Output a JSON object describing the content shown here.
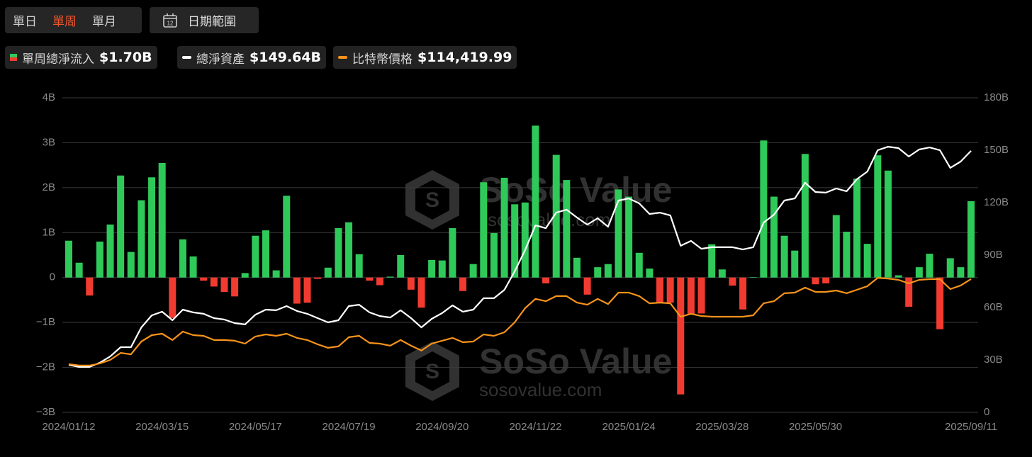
{
  "controls": {
    "periods": [
      "單日",
      "單周",
      "單月"
    ],
    "active": 1,
    "active_color": "#f2552c",
    "date_range": "日期範圍"
  },
  "chart_data": {
    "type": "bar",
    "grid": true,
    "watermark": {
      "name": "SoSo Value",
      "url": "sosovalue.com"
    },
    "categories": [
      "2024/01/12",
      null,
      null,
      null,
      null,
      null,
      null,
      null,
      null,
      "2024/03/15",
      null,
      null,
      null,
      null,
      null,
      null,
      null,
      null,
      "2024/05/17",
      null,
      null,
      null,
      null,
      null,
      null,
      null,
      null,
      "2024/07/19",
      null,
      null,
      null,
      null,
      null,
      null,
      null,
      null,
      "2024/09/20",
      null,
      null,
      null,
      null,
      null,
      null,
      null,
      null,
      "2024/11/22",
      null,
      null,
      null,
      null,
      null,
      null,
      null,
      null,
      "2025/01/24",
      null,
      null,
      null,
      null,
      null,
      null,
      null,
      null,
      "2025/03/28",
      null,
      null,
      null,
      null,
      null,
      null,
      null,
      null,
      "2025/05/30",
      null,
      null,
      null,
      null,
      null,
      null,
      null,
      null,
      null,
      null,
      null,
      null,
      null,
      null,
      "2025/09/11"
    ],
    "ylim": [
      -3,
      4
    ],
    "yticks": [
      {
        "value": 4,
        "label": "4B"
      },
      {
        "value": 3,
        "label": "3B"
      },
      {
        "value": 2,
        "label": "2B"
      },
      {
        "value": 1,
        "label": "1B"
      },
      {
        "value": 0,
        "label": "0"
      },
      {
        "value": -1,
        "label": "−1B"
      },
      {
        "value": -2,
        "label": "−2B"
      },
      {
        "value": -3,
        "label": "−3B"
      }
    ],
    "y2lim": [
      0,
      180
    ],
    "y2ticks": [
      {
        "value": 180,
        "label": "180B"
      },
      {
        "value": 150,
        "label": "150B"
      },
      {
        "value": 120,
        "label": "120B"
      },
      {
        "value": 90,
        "label": "90B"
      },
      {
        "value": 60,
        "label": "60B"
      },
      {
        "value": 30,
        "label": "30B"
      },
      0
    ],
    "y3lim": [
      0,
      270000
    ],
    "series": [
      {
        "name": "單周總淨流入",
        "type": "bar",
        "latest_label": "$1.70B",
        "color_positive": "#2fc95a",
        "color_negative": "#f23b30",
        "values": [
          0.82,
          0.33,
          -0.4,
          0.8,
          1.18,
          2.27,
          0.57,
          1.72,
          2.23,
          2.55,
          -0.9,
          0.85,
          0.47,
          -0.07,
          -0.2,
          -0.32,
          -0.42,
          0.1,
          0.93,
          1.05,
          0.16,
          1.82,
          -0.58,
          -0.56,
          -0.03,
          0.22,
          1.1,
          1.23,
          0.52,
          -0.07,
          -0.17,
          0.02,
          0.5,
          -0.27,
          -0.67,
          0.39,
          0.38,
          1.1,
          -0.3,
          0.3,
          2.12,
          0.99,
          2.22,
          1.63,
          1.67,
          3.38,
          -0.13,
          2.73,
          2.17,
          0.44,
          -0.38,
          0.23,
          0.3,
          1.96,
          1.8,
          0.55,
          0.2,
          -0.56,
          -0.56,
          -2.6,
          -0.82,
          -0.8,
          0.74,
          0.18,
          -0.18,
          -0.71,
          0.01,
          3.05,
          1.8,
          0.93,
          0.6,
          2.75,
          -0.15,
          -0.13,
          1.39,
          1.02,
          2.2,
          0.75,
          2.72,
          2.38,
          0.05,
          -0.65,
          0.23,
          0.53,
          -1.15,
          0.43,
          0.23,
          1.7
        ]
      },
      {
        "name": "總淨資產",
        "type": "line",
        "axis": "y2",
        "latest_label": "$149.64B",
        "color": "#ffffff",
        "values": [
          27.2,
          26,
          26,
          28.4,
          32,
          37.3,
          37.3,
          48.6,
          55.5,
          57.6,
          52.7,
          58.8,
          57.2,
          56.4,
          53.9,
          53.1,
          51.1,
          50.3,
          55.9,
          58.8,
          58.4,
          60.8,
          58,
          56.4,
          53.9,
          51.5,
          52.7,
          60.8,
          61.6,
          57.2,
          55.1,
          54.3,
          58.4,
          53.9,
          48.6,
          53.5,
          56.8,
          61.2,
          57.6,
          58.8,
          65.3,
          65.3,
          70.1,
          80.7,
          92.8,
          107,
          105.4,
          114.3,
          116,
          111.5,
          107.4,
          111.1,
          106.2,
          121.2,
          122.4,
          119.6,
          113.5,
          114.3,
          112.7,
          95.3,
          98.1,
          93.6,
          94.5,
          94.5,
          94.5,
          93.2,
          94.5,
          108.6,
          113.1,
          121.2,
          122.4,
          131.4,
          126.1,
          125.7,
          128.1,
          126.5,
          133.4,
          137.8,
          150,
          152,
          151.2,
          146.4,
          150.4,
          151.6,
          150,
          139.9,
          143.5,
          149.64
        ]
      },
      {
        "name": "比特幣價格",
        "type": "line",
        "axis": "y3",
        "latest_label": "$114,419.99",
        "color": "#f7931a",
        "values": [
          41400,
          40200,
          40200,
          42000,
          45000,
          51000,
          49800,
          60800,
          66300,
          67500,
          62100,
          69300,
          66300,
          65700,
          62100,
          62100,
          61500,
          59000,
          65100,
          66900,
          65700,
          67500,
          63900,
          62100,
          58400,
          55400,
          56600,
          64500,
          65700,
          59600,
          59000,
          57200,
          62100,
          57200,
          53000,
          59000,
          61500,
          63900,
          60200,
          60800,
          66900,
          65700,
          68700,
          77300,
          89400,
          97400,
          95400,
          99800,
          99800,
          94200,
          92400,
          97400,
          93000,
          102800,
          102800,
          99800,
          93600,
          94200,
          93600,
          82100,
          84600,
          82700,
          82100,
          82100,
          82100,
          82100,
          83300,
          93600,
          95400,
          102200,
          102800,
          107100,
          103400,
          103400,
          104600,
          102200,
          105200,
          108300,
          115500,
          114900,
          113700,
          110700,
          113700,
          114300,
          114300,
          105800,
          108900,
          114419.99
        ]
      }
    ]
  }
}
